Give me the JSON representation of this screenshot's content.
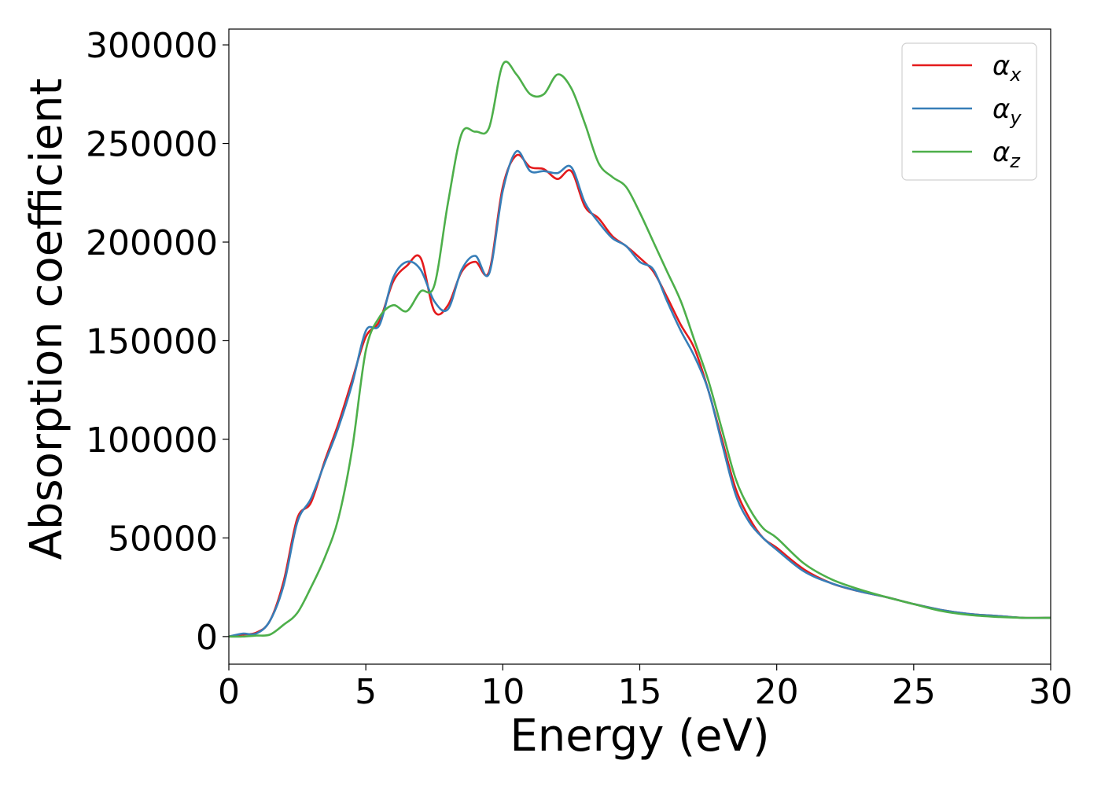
{
  "chart_data": {
    "type": "line",
    "xlabel": "Energy (eV)",
    "ylabel": "Absorption coefficient",
    "xlim": [
      0,
      30
    ],
    "ylim": [
      -14000,
      308000
    ],
    "xticks": [
      "0",
      "5",
      "10",
      "15",
      "20",
      "25",
      "30"
    ],
    "yticks": [
      "0",
      "50000",
      "100000",
      "150000",
      "200000",
      "250000",
      "300000"
    ],
    "grid": false,
    "legend_position": "top-right",
    "series": [
      {
        "name": "αx",
        "legend_base": "α",
        "legend_sub": "x",
        "color": "#e41a1c",
        "x": [
          0,
          0.5,
          1,
          1.5,
          2,
          2.5,
          3,
          3.5,
          4,
          4.5,
          5,
          5.5,
          6,
          6.5,
          7,
          7.5,
          8,
          8.5,
          9,
          9.5,
          10,
          10.5,
          11,
          11.5,
          12,
          12.5,
          13,
          13.5,
          14,
          14.5,
          15,
          15.5,
          16,
          16.5,
          17,
          17.5,
          18,
          18.5,
          19,
          19.5,
          20,
          21,
          22,
          23,
          24,
          25,
          26,
          27,
          28,
          29,
          30
        ],
        "y": [
          0,
          1000,
          2000,
          8000,
          28000,
          60000,
          68000,
          89000,
          108000,
          130000,
          152000,
          160000,
          180000,
          188000,
          192000,
          165000,
          168000,
          185000,
          190000,
          185000,
          228000,
          244000,
          238000,
          237000,
          232000,
          236000,
          218000,
          212000,
          203000,
          198000,
          192000,
          185000,
          172000,
          158000,
          146000,
          125000,
          100000,
          75000,
          60000,
          50000,
          45000,
          34000,
          27000,
          23000,
          20000,
          16500,
          13500,
          11500,
          10500,
          9500,
          9500
        ]
      },
      {
        "name": "αy",
        "legend_base": "α",
        "legend_sub": "y",
        "color": "#377eb8",
        "x": [
          0,
          0.5,
          1,
          1.5,
          2,
          2.5,
          3,
          3.5,
          4,
          4.5,
          5,
          5.5,
          6,
          6.5,
          7,
          7.5,
          8,
          8.5,
          9,
          9.5,
          10,
          10.5,
          11,
          11.5,
          12,
          12.5,
          13,
          13.5,
          14,
          14.5,
          15,
          15.5,
          16,
          16.5,
          17,
          17.5,
          18,
          18.5,
          19,
          19.5,
          20,
          21,
          22,
          23,
          24,
          25,
          26,
          27,
          28,
          29,
          30
        ],
        "y": [
          0,
          1500,
          1500,
          8000,
          26000,
          58000,
          70000,
          88000,
          106000,
          128000,
          155000,
          158000,
          182000,
          190000,
          186000,
          170000,
          166000,
          186000,
          193000,
          184000,
          226000,
          246000,
          236000,
          236000,
          235000,
          238000,
          220000,
          210000,
          202000,
          198000,
          190000,
          186000,
          170000,
          155000,
          142000,
          125000,
          98000,
          72000,
          58000,
          50000,
          44000,
          33000,
          27000,
          23000,
          20000,
          16500,
          13500,
          11500,
          10500,
          9500,
          9500
        ]
      },
      {
        "name": "αz",
        "legend_base": "α",
        "legend_sub": "z",
        "color": "#4daf4a",
        "x": [
          0,
          0.5,
          1,
          1.5,
          2,
          2.5,
          3,
          3.5,
          4,
          4.5,
          5,
          5.5,
          6,
          6.5,
          7,
          7.5,
          8,
          8.5,
          9,
          9.5,
          10,
          10.5,
          11,
          11.5,
          12,
          12.5,
          13,
          13.5,
          14,
          14.5,
          15,
          15.5,
          16,
          16.5,
          17,
          17.5,
          18,
          18.5,
          19,
          19.5,
          20,
          21,
          22,
          23,
          24,
          25,
          26,
          27,
          28,
          29,
          30
        ],
        "y": [
          0,
          0,
          500,
          1000,
          6000,
          12000,
          25000,
          40000,
          60000,
          95000,
          145000,
          162000,
          168000,
          165000,
          175000,
          178000,
          220000,
          255000,
          256000,
          258000,
          290000,
          285000,
          275000,
          275000,
          285000,
          278000,
          260000,
          240000,
          233000,
          228000,
          215000,
          200000,
          185000,
          170000,
          150000,
          130000,
          105000,
          80000,
          65000,
          55000,
          50000,
          37000,
          29000,
          24000,
          20000,
          16500,
          13000,
          11000,
          10000,
          9500,
          9500
        ]
      }
    ]
  }
}
